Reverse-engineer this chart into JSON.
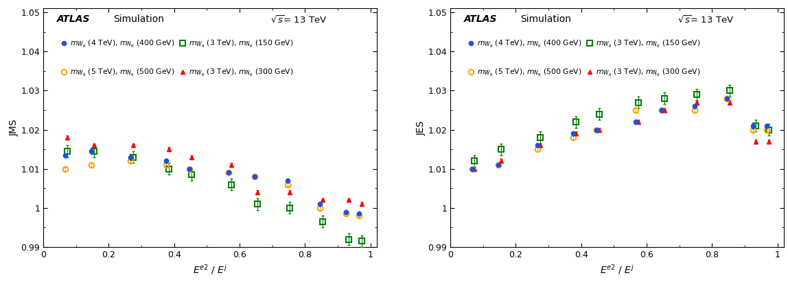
{
  "x_values": [
    0.07,
    0.15,
    0.27,
    0.38,
    0.45,
    0.57,
    0.65,
    0.75,
    0.85,
    0.93,
    0.97
  ],
  "jms_blue": [
    1.0135,
    1.0145,
    1.013,
    1.012,
    1.01,
    1.009,
    1.008,
    1.007,
    1.001,
    0.999,
    0.9985
  ],
  "jms_blue_err": [
    0.0005,
    0.0005,
    0.0005,
    0.0005,
    0.0005,
    0.0005,
    0.0005,
    0.0005,
    0.0005,
    0.0005,
    0.0005
  ],
  "jms_green": [
    1.0145,
    1.0145,
    1.013,
    1.01,
    1.0085,
    1.006,
    1.001,
    1.0,
    0.9965,
    0.992,
    0.9915
  ],
  "jms_green_err": [
    0.0015,
    0.0015,
    0.0015,
    0.0015,
    0.0015,
    0.0015,
    0.0015,
    0.0015,
    0.0015,
    0.0015,
    0.0015
  ],
  "jms_orange": [
    1.01,
    1.011,
    1.012,
    1.011,
    1.01,
    1.009,
    1.008,
    1.006,
    1.0,
    0.9985,
    0.998
  ],
  "jms_orange_err": [
    0.0005,
    0.0005,
    0.0005,
    0.0005,
    0.0005,
    0.0005,
    0.0005,
    0.0005,
    0.0005,
    0.0005,
    0.0005
  ],
  "jms_red": [
    1.018,
    1.016,
    1.016,
    1.015,
    1.013,
    1.011,
    1.004,
    1.004,
    1.002,
    1.002,
    1.001
  ],
  "jms_red_err": [
    0.0005,
    0.0005,
    0.0005,
    0.0005,
    0.0005,
    0.0005,
    0.0005,
    0.0005,
    0.0005,
    0.0005,
    0.0005
  ],
  "jes_blue": [
    1.01,
    1.011,
    1.016,
    1.019,
    1.02,
    1.022,
    1.025,
    1.026,
    1.028,
    1.021,
    1.021
  ],
  "jes_blue_err": [
    0.0005,
    0.0005,
    0.0005,
    0.0005,
    0.0005,
    0.0005,
    0.0005,
    0.0005,
    0.0005,
    0.0005,
    0.0005
  ],
  "jes_green": [
    1.012,
    1.015,
    1.018,
    1.022,
    1.024,
    1.027,
    1.028,
    1.029,
    1.03,
    1.021,
    1.02
  ],
  "jes_green_err": [
    0.0015,
    0.0015,
    0.0015,
    0.0015,
    0.0015,
    0.0015,
    0.0015,
    0.0015,
    0.0015,
    0.0015,
    0.0015
  ],
  "jes_orange": [
    1.01,
    1.011,
    1.015,
    1.018,
    1.02,
    1.025,
    1.025,
    1.025,
    1.028,
    1.02,
    1.02
  ],
  "jes_orange_err": [
    0.0005,
    0.0005,
    0.0005,
    0.0005,
    0.0005,
    0.0005,
    0.0005,
    0.0005,
    0.0005,
    0.0005,
    0.0005
  ],
  "jes_red": [
    1.01,
    1.012,
    1.016,
    1.019,
    1.02,
    1.022,
    1.025,
    1.027,
    1.027,
    1.017,
    1.017
  ],
  "jes_red_err": [
    0.0005,
    0.0005,
    0.0005,
    0.0005,
    0.0005,
    0.0005,
    0.0005,
    0.0005,
    0.0005,
    0.0005,
    0.0005
  ],
  "ylim": [
    0.99,
    1.051
  ],
  "yticks": [
    0.99,
    1.0,
    1.01,
    1.02,
    1.03,
    1.04,
    1.05
  ],
  "ytick_labels": [
    "0.99",
    "1",
    "1.01",
    "1.02",
    "1.03",
    "1.04",
    "1.05"
  ],
  "xlim": [
    0.0,
    1.02
  ],
  "xticks": [
    0.0,
    0.2,
    0.4,
    0.6,
    0.8,
    1.0
  ],
  "xtick_labels": [
    "0",
    "0.2",
    "0.4",
    "0.6",
    "0.8",
    "1"
  ],
  "color_blue": "#1f4ee8",
  "color_green": "#008000",
  "color_orange": "#ffa500",
  "color_red": "#ff0000",
  "label_blue": "$m_{W_{R}}$ (4 TeV), $m_{N_{R}}$ (400 GeV)",
  "label_green": "$m_{W_{R}}$ (3 TeV), $m_{N_{R}}$ (150 GeV)",
  "label_orange": "$m_{W_{R}}$ (5 TeV), $m_{N_{R}}$ (500 GeV)",
  "label_red": "$m_{W_{R}}$ (3 TeV), $m_{N_{R}}$ (300 GeV)",
  "xlabel": "$E^{e2}$ / $E^{j}$",
  "ylabel_left": "JMS",
  "ylabel_right": "JES",
  "atlas_text": "ATLAS",
  "sim_text": "Simulation",
  "energy_text": "$\\sqrt{s}$= 13 TeV"
}
